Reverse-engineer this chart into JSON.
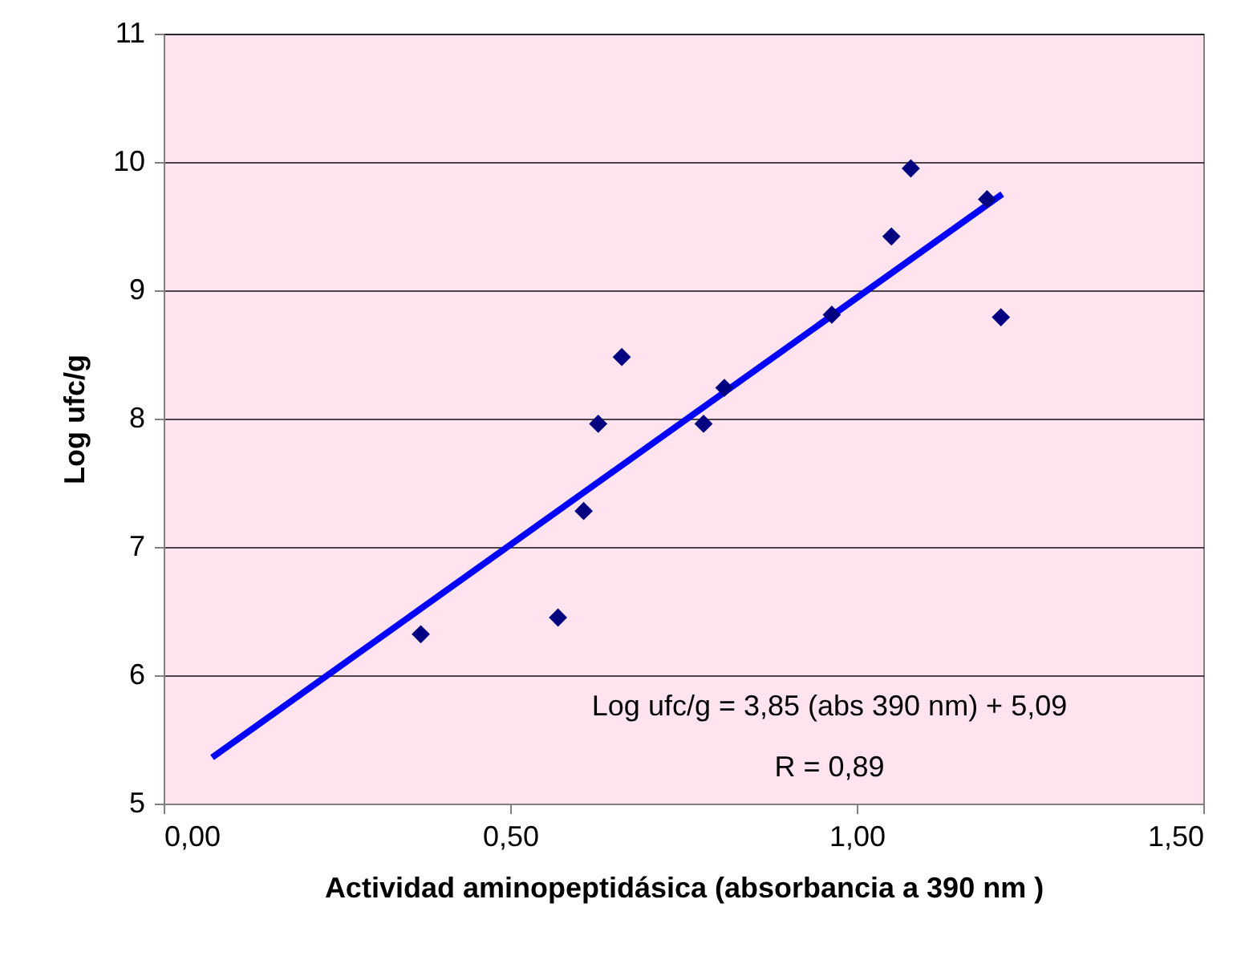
{
  "chart_data": {
    "type": "scatter",
    "xlabel": "Actividad aminopeptidásica (absorbancia a 390 nm )",
    "ylabel": "Log ufc/g",
    "xlim": [
      0,
      1.5
    ],
    "xticks": [
      {
        "value": 0,
        "label": "0,00"
      },
      {
        "value": 0.5,
        "label": "0,50"
      },
      {
        "value": 1,
        "label": "1,00"
      },
      {
        "value": 1.5,
        "label": "1,50"
      }
    ],
    "ylim": [
      5,
      11
    ],
    "yticks": [
      5,
      6,
      7,
      8,
      9,
      10,
      11
    ],
    "grid": "y",
    "legend": false,
    "series": [
      {
        "type": "line",
        "color": "#0000ff",
        "marker": "none",
        "line_style": "solid",
        "x": [
          0.07,
          1.21
        ],
        "values": [
          5.36,
          9.75
        ]
      },
      {
        "color": "#000080",
        "marker": "diamond",
        "x": [
          0.371,
          0.569,
          0.606,
          0.627,
          0.661,
          0.779,
          0.809,
          0.964,
          1.05,
          1.078,
          1.188,
          1.208
        ],
        "values": [
          6.32,
          6.45,
          7.28,
          7.96,
          8.48,
          7.96,
          8.24,
          8.81,
          9.42,
          9.95,
          9.71,
          8.79
        ]
      }
    ],
    "annotations": [
      "Log ufc/g = 3,85 (abs 390 nm) + 5,09",
      "R = 0,89"
    ]
  }
}
